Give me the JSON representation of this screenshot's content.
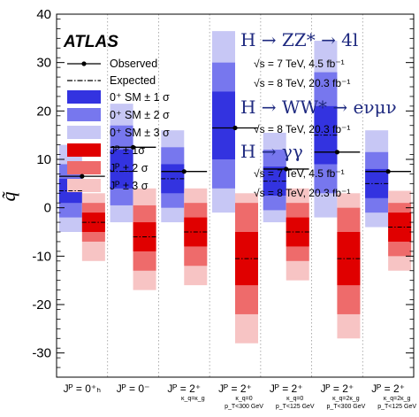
{
  "chart_data": {
    "type": "box",
    "experiment_label": "ATLAS",
    "ylabel": "q̃",
    "ylim": [
      -35,
      40
    ],
    "yticks": [
      -30,
      -20,
      -10,
      0,
      10,
      20,
      30,
      40
    ],
    "legend": {
      "observed": "Observed",
      "expected": "Expected",
      "sm1": "0⁺ SM ± 1 σ",
      "sm2": "0⁺ SM ± 2 σ",
      "sm3": "0⁺ SM ± 3 σ",
      "jp1": "Jᴾ ± 1σ",
      "jp2": "Jᴾ ± 2 σ",
      "jp3": "Jᴾ ± 3 σ"
    },
    "channels": [
      {
        "title": "H → ZZ* → 4l",
        "lines": [
          "√s = 7 TeV, 4.5 fb⁻¹",
          "√s = 8 TeV, 20.3 fb⁻¹"
        ]
      },
      {
        "title": "H → WW* → eνμν",
        "lines": [
          "√s = 8 TeV, 20.3 fb⁻¹"
        ]
      },
      {
        "title": "H → γγ",
        "lines": [
          "√s = 7 TeV, 4.5 fb⁻¹",
          "√s = 8 TeV, 20.3 fb⁻¹"
        ]
      }
    ],
    "categories": [
      {
        "label": "Jᴾ = 0⁺ₕ",
        "sublabels": []
      },
      {
        "label": "Jᴾ = 0⁻",
        "sublabels": []
      },
      {
        "label": "Jᴾ = 2⁺",
        "sublabels": [
          "κ_q=κ_g"
        ]
      },
      {
        "label": "Jᴾ = 2⁺",
        "sublabels": [
          "κ_q=0",
          "p_T<300 GeV"
        ]
      },
      {
        "label": "Jᴾ = 2⁺",
        "sublabels": [
          "κ_q=0",
          "p_T<125 GeV"
        ]
      },
      {
        "label": "Jᴾ = 2⁺",
        "sublabels": [
          "κ_q=2κ_g",
          "p_T<300 GeV"
        ]
      },
      {
        "label": "Jᴾ = 2⁺",
        "sublabels": [
          "κ_q=2κ_g",
          "p_T<125 GeV"
        ]
      }
    ],
    "sm_expected": [
      3.5,
      7.5,
      6,
      16.5,
      5.5,
      15,
      5
    ],
    "sm_bands": [
      {
        "s1": [
          1,
          6
        ],
        "s2": [
          -2,
          9
        ],
        "s3": [
          -5,
          13
        ]
      },
      {
        "s1": [
          4,
          12
        ],
        "s2": [
          0.5,
          17
        ],
        "s3": [
          -3,
          21.5
        ]
      },
      {
        "s1": [
          3,
          9
        ],
        "s2": [
          0,
          12.5
        ],
        "s3": [
          -3,
          16
        ]
      },
      {
        "s1": [
          10,
          24
        ],
        "s2": [
          4,
          30
        ],
        "s3": [
          -1,
          36.5
        ]
      },
      {
        "s1": [
          2.5,
          8.5
        ],
        "s2": [
          -0.5,
          12
        ],
        "s3": [
          -3,
          15.5
        ]
      },
      {
        "s1": [
          9,
          21
        ],
        "s2": [
          3,
          28
        ],
        "s3": [
          -2,
          34.5
        ]
      },
      {
        "s1": [
          2,
          8
        ],
        "s2": [
          -1,
          11.5
        ],
        "s3": [
          -4,
          16
        ]
      }
    ],
    "alt_expected": [
      -3,
      -6,
      -5,
      -10.5,
      -5,
      -10.5,
      -4
    ],
    "alt_bands": [
      {
        "s1": [
          -5,
          -1
        ],
        "s2": [
          -7,
          1
        ],
        "s3": [
          -11,
          3
        ]
      },
      {
        "s1": [
          -9,
          -3
        ],
        "s2": [
          -13,
          0.5
        ],
        "s3": [
          -17,
          4
        ]
      },
      {
        "s1": [
          -8,
          -2
        ],
        "s2": [
          -12,
          1
        ],
        "s3": [
          -16,
          4
        ]
      },
      {
        "s1": [
          -16,
          -5
        ],
        "s2": [
          -22,
          1
        ],
        "s3": [
          -28,
          3
        ]
      },
      {
        "s1": [
          -8,
          -2
        ],
        "s2": [
          -11,
          1
        ],
        "s3": [
          -15,
          4
        ]
      },
      {
        "s1": [
          -16,
          -5
        ],
        "s2": [
          -22,
          0
        ],
        "s3": [
          -27,
          3
        ]
      },
      {
        "s1": [
          -7,
          -1
        ],
        "s2": [
          -10,
          1
        ],
        "s3": [
          -13,
          3.5
        ]
      }
    ],
    "observed": [
      6.5,
      12.5,
      7.5,
      16.5,
      8,
      11.5,
      7.5
    ],
    "colors": {
      "sm1": "#3333e0",
      "sm2": "#7777ee",
      "sm3": "#c7c7f5",
      "jp1": "#e00000",
      "jp2": "#ee6b6b",
      "jp3": "#f7c4c4",
      "observed": "#000000",
      "axis": "#000000",
      "separator": "#999999",
      "channel_title": "#1f2a80"
    }
  }
}
